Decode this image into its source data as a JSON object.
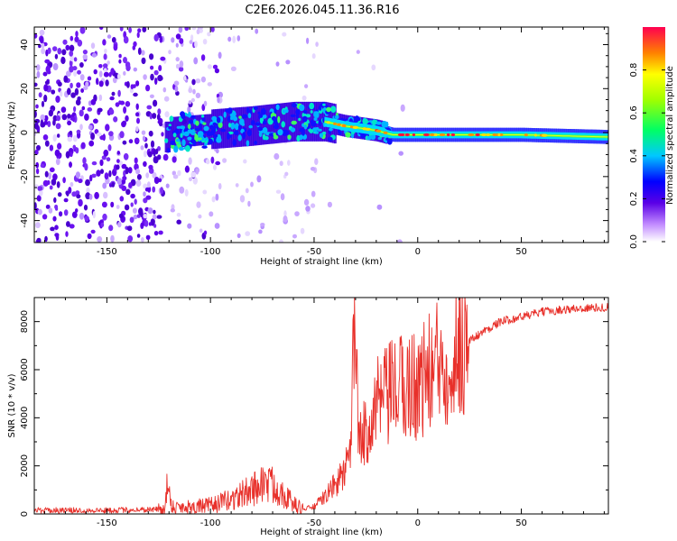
{
  "title": "C2E6.2026.045.11.36.R16",
  "chart_data": [
    {
      "type": "heatmap",
      "xlabel": "Height of straight line (km)",
      "ylabel": "Frequency (Hz)",
      "xlim": [
        -185,
        92
      ],
      "ylim": [
        -50,
        48
      ],
      "xticks": [
        -150,
        -100,
        -50,
        0,
        50
      ],
      "yticks": [
        -40,
        -20,
        0,
        20,
        40
      ],
      "colorbar": {
        "label": "Normalized spectral amplitude",
        "range": [
          0.0,
          1.0
        ],
        "ticks": [
          0.0,
          0.2,
          0.4,
          0.6,
          0.8
        ],
        "tick_labels": [
          "0.0",
          "0.2",
          "0.4",
          "0.6",
          "0.8"
        ]
      },
      "tone_track": [
        {
          "x": -120,
          "freq": 0
        },
        {
          "x": -80,
          "freq": 3
        },
        {
          "x": -60,
          "freq": 5
        },
        {
          "x": -45,
          "freq": 5
        },
        {
          "x": -35,
          "freq": 3
        },
        {
          "x": -20,
          "freq": 1
        },
        {
          "x": -12,
          "freq": -1
        },
        {
          "x": 0,
          "freq": -1
        },
        {
          "x": 50,
          "freq": -1
        },
        {
          "x": 92,
          "freq": -2
        }
      ]
    },
    {
      "type": "line",
      "xlabel": "Height of straight line (km)",
      "ylabel": "SNR (10 * v/v)",
      "xlim": [
        -185,
        92
      ],
      "ylim": [
        0,
        9000
      ],
      "xticks": [
        -150,
        -100,
        -50,
        0,
        50
      ],
      "yticks": [
        0,
        2000,
        4000,
        6000,
        8000
      ],
      "series": [
        {
          "name": "SNR",
          "color": "#e8302a",
          "x": [
            -185,
            -150,
            -122,
            -121,
            -118,
            -110,
            -100,
            -90,
            -80,
            -75,
            -70,
            -65,
            -60,
            -55,
            -50,
            -45,
            -40,
            -35,
            -32,
            -31,
            -28,
            -25,
            -20,
            -15,
            -10,
            -5,
            0,
            5,
            10,
            15,
            20,
            25,
            30,
            40,
            50,
            60,
            70,
            80,
            92
          ],
          "values": [
            150,
            150,
            200,
            1100,
            300,
            300,
            350,
            600,
            1000,
            1300,
            1200,
            900,
            400,
            200,
            300,
            700,
            1200,
            1800,
            2500,
            8200,
            2800,
            3500,
            4500,
            4800,
            5200,
            5300,
            5400,
            5800,
            6200,
            6500,
            7000,
            7200,
            7500,
            8000,
            8200,
            8400,
            8500,
            8550,
            8600
          ]
        }
      ]
    }
  ]
}
